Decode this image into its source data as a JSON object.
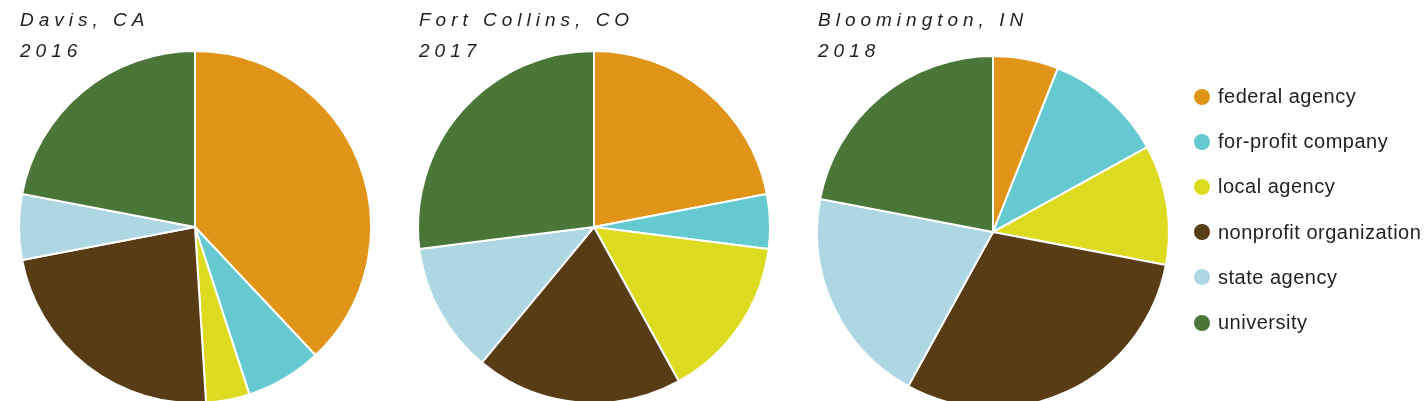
{
  "chart_data": [
    {
      "type": "pie",
      "title": "Davis, CA",
      "subtitle": "2016",
      "categories": [
        null,
        null,
        null,
        null,
        null,
        null
      ],
      "values": [
        38,
        7,
        4,
        23,
        6,
        22
      ],
      "colors": [
        "#e09518",
        "#64c9d1",
        "#dddb1f",
        "#573c16",
        "#add8e3",
        "#4a7638"
      ]
    },
    {
      "type": "pie",
      "title": "Fort Collins, CO",
      "subtitle": "2017",
      "categories": [
        null,
        null,
        null,
        null,
        null,
        null
      ],
      "values": [
        22,
        5,
        15,
        19,
        12,
        27
      ],
      "colors": [
        "#e09518",
        "#64c9d1",
        "#dddb1f",
        "#573c16",
        "#add8e3",
        "#4a7638"
      ]
    },
    {
      "type": "pie",
      "title": "Bloomington, IN",
      "subtitle": "2018",
      "categories": [
        "federal agency",
        "for-profit company",
        "local agency",
        "nonprofit organization",
        "state agency",
        "university"
      ],
      "values": [
        6,
        11,
        11,
        30,
        20,
        22
      ],
      "colors": [
        "#e09518",
        "#64c9d1",
        "#dddb1f",
        "#573c16",
        "#add8e3",
        "#4a7638"
      ],
      "legend": "right"
    }
  ]
}
